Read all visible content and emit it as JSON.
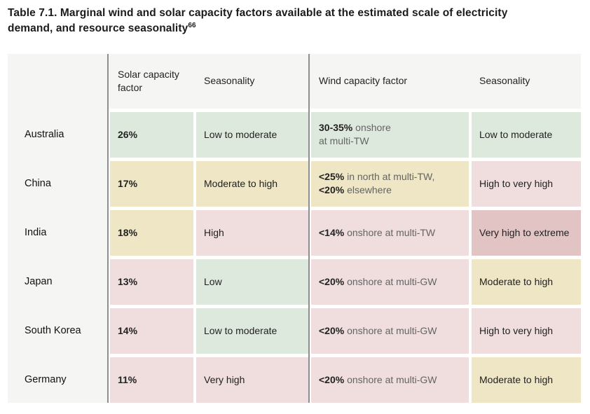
{
  "title": {
    "text": "Table 7.1. Marginal wind and solar capacity factors available at the estimated scale of electricity demand, and resource seasonality",
    "footnote_ref": "66"
  },
  "colors": {
    "green": "#dee9dd",
    "yellow": "#eee6c4",
    "pink": "#f0dede",
    "dark_pink": "#e2c4c4",
    "band": "#f5f5f3",
    "divider": "#8e8e8e",
    "text_dark": "#222222",
    "text_gray": "#646464"
  },
  "table": {
    "headers": [
      "",
      "Solar capacity factor",
      "Seasonality",
      "Wind capacity factor",
      "Seasonality"
    ],
    "rows": [
      {
        "country": "Australia",
        "solar_cf": {
          "value": "26%",
          "color": "green"
        },
        "solar_seasonality": {
          "text": "Low to moderate",
          "color": "green"
        },
        "wind_cf": {
          "color": "green",
          "segments": [
            {
              "text": "30-35%",
              "bold": true
            },
            {
              "text": " onshore\nat multi-TW",
              "bold": false
            }
          ]
        },
        "wind_seasonality": {
          "text": "Low to moderate",
          "color": "green"
        }
      },
      {
        "country": "China",
        "solar_cf": {
          "value": "17%",
          "color": "yellow"
        },
        "solar_seasonality": {
          "text": "Moderate to high",
          "color": "yellow"
        },
        "wind_cf": {
          "color": "yellow",
          "segments": [
            {
              "text": "<25%",
              "bold": true
            },
            {
              "text": " in north at multi-TW,\n",
              "bold": false
            },
            {
              "text": "<20%",
              "bold": true
            },
            {
              "text": " elsewhere",
              "bold": false
            }
          ]
        },
        "wind_seasonality": {
          "text": "High to very high",
          "color": "pink"
        }
      },
      {
        "country": "India",
        "solar_cf": {
          "value": "18%",
          "color": "yellow"
        },
        "solar_seasonality": {
          "text": "High",
          "color": "pink"
        },
        "wind_cf": {
          "color": "pink",
          "segments": [
            {
              "text": "<14%",
              "bold": true
            },
            {
              "text": " onshore at multi-TW",
              "bold": false
            }
          ]
        },
        "wind_seasonality": {
          "text": "Very high to extreme",
          "color": "dark_pink"
        }
      },
      {
        "country": "Japan",
        "solar_cf": {
          "value": "13%",
          "color": "pink"
        },
        "solar_seasonality": {
          "text": "Low",
          "color": "green"
        },
        "wind_cf": {
          "color": "pink",
          "segments": [
            {
              "text": "<20%",
              "bold": true
            },
            {
              "text": " onshore at multi-GW",
              "bold": false
            }
          ]
        },
        "wind_seasonality": {
          "text": "Moderate to high",
          "color": "yellow"
        }
      },
      {
        "country": "South Korea",
        "solar_cf": {
          "value": "14%",
          "color": "pink"
        },
        "solar_seasonality": {
          "text": "Low to moderate",
          "color": "green"
        },
        "wind_cf": {
          "color": "pink",
          "segments": [
            {
              "text": "<20%",
              "bold": true
            },
            {
              "text": " onshore at multi-GW",
              "bold": false
            }
          ]
        },
        "wind_seasonality": {
          "text": "High to very high",
          "color": "pink"
        }
      },
      {
        "country": "Germany",
        "solar_cf": {
          "value": "11%",
          "color": "pink"
        },
        "solar_seasonality": {
          "text": "Very high",
          "color": "pink"
        },
        "wind_cf": {
          "color": "pink",
          "segments": [
            {
              "text": "<20%",
              "bold": true
            },
            {
              "text": " onshore at multi-GW",
              "bold": false
            }
          ]
        },
        "wind_seasonality": {
          "text": "Moderate to high",
          "color": "yellow"
        }
      }
    ]
  }
}
